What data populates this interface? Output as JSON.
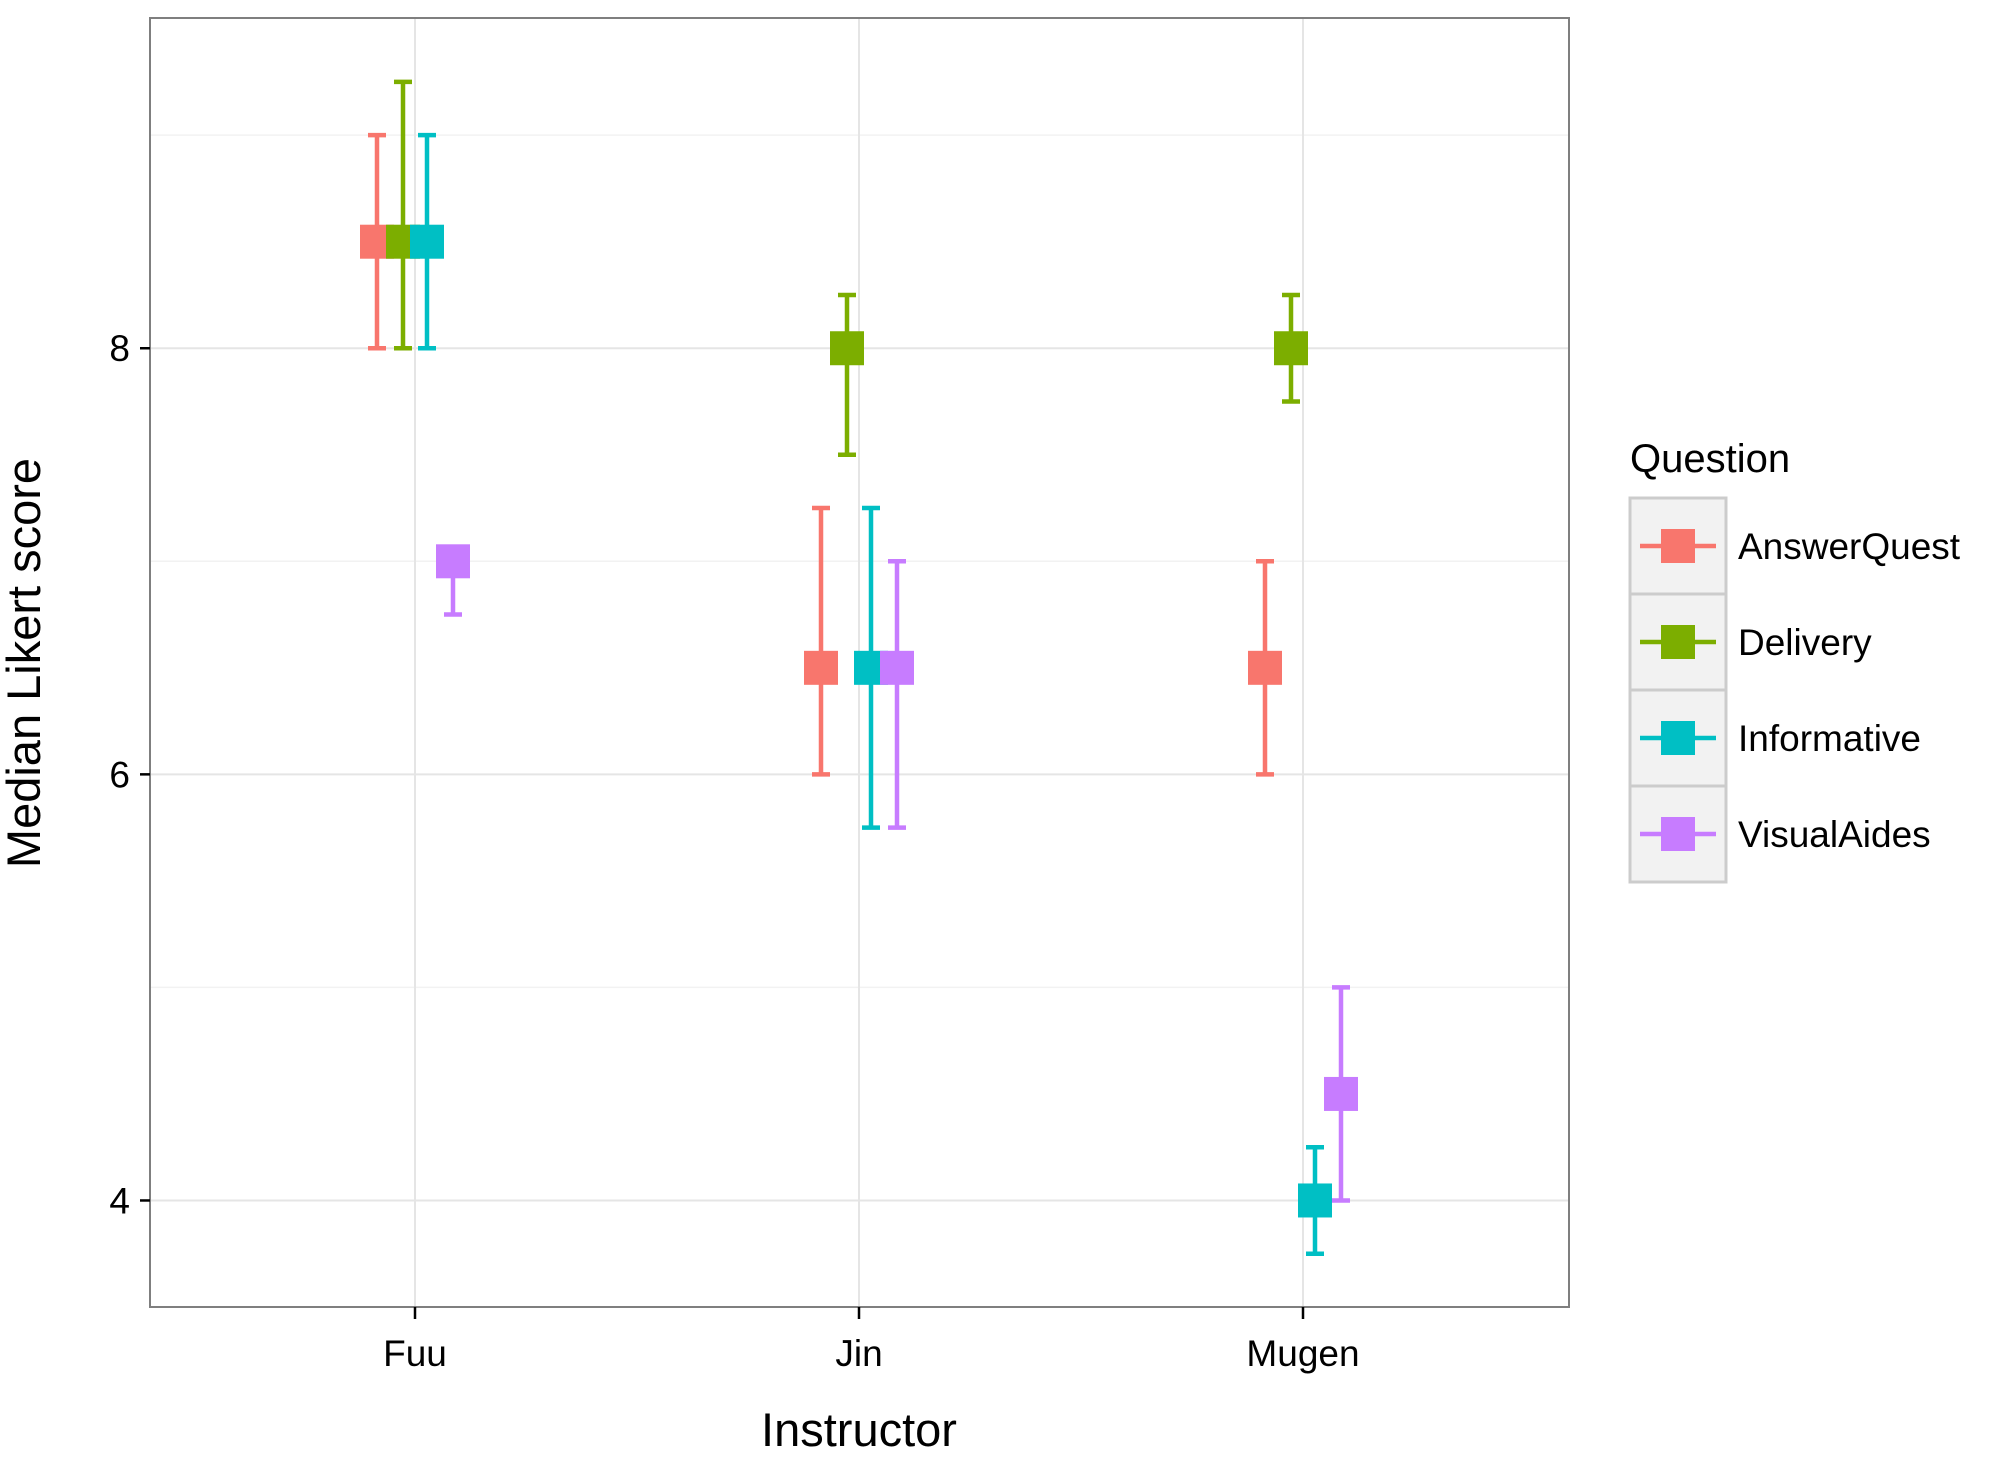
{
  "chart_data": {
    "type": "scatter",
    "subtype": "point-with-errorbars",
    "title": "",
    "xlabel": "Instructor",
    "ylabel": "Median Likert score",
    "categories": [
      "Fuu",
      "Jin",
      "Mugen"
    ],
    "ylim": [
      3.5,
      9.55
    ],
    "yticks": [
      4,
      6,
      8
    ],
    "ytick_labels": [
      "4",
      "6",
      "8"
    ],
    "grid": true,
    "legend": {
      "title": "Question",
      "position": "right"
    },
    "series": [
      {
        "name": "AnswerQuest",
        "color": "#F8766D",
        "points": [
          {
            "x": "Fuu",
            "y": 8.5,
            "ymin": 8.0,
            "ymax": 9.0
          },
          {
            "x": "Jin",
            "y": 6.5,
            "ymin": 6.0,
            "ymax": 7.25
          },
          {
            "x": "Mugen",
            "y": 6.5,
            "ymin": 6.0,
            "ymax": 7.0
          }
        ]
      },
      {
        "name": "Delivery",
        "color": "#7CAE00",
        "points": [
          {
            "x": "Fuu",
            "y": 8.5,
            "ymin": 8.0,
            "ymax": 9.25
          },
          {
            "x": "Jin",
            "y": 8.0,
            "ymin": 7.5,
            "ymax": 8.25
          },
          {
            "x": "Mugen",
            "y": 8.0,
            "ymin": 7.75,
            "ymax": 8.25
          }
        ]
      },
      {
        "name": "Informative",
        "color": "#00BFC4",
        "points": [
          {
            "x": "Fuu",
            "y": 8.5,
            "ymin": 8.0,
            "ymax": 9.0
          },
          {
            "x": "Jin",
            "y": 6.5,
            "ymin": 5.75,
            "ymax": 7.25
          },
          {
            "x": "Mugen",
            "y": 4.0,
            "ymin": 3.75,
            "ymax": 4.25
          }
        ]
      },
      {
        "name": "VisualAides",
        "color": "#C77CFF",
        "points": [
          {
            "x": "Fuu",
            "y": 7.0,
            "ymin": 6.75,
            "ymax": 7.0
          },
          {
            "x": "Jin",
            "y": 6.5,
            "ymin": 5.75,
            "ymax": 7.0
          },
          {
            "x": "Mugen",
            "y": 4.5,
            "ymin": 4.0,
            "ymax": 5.0
          }
        ]
      }
    ]
  }
}
